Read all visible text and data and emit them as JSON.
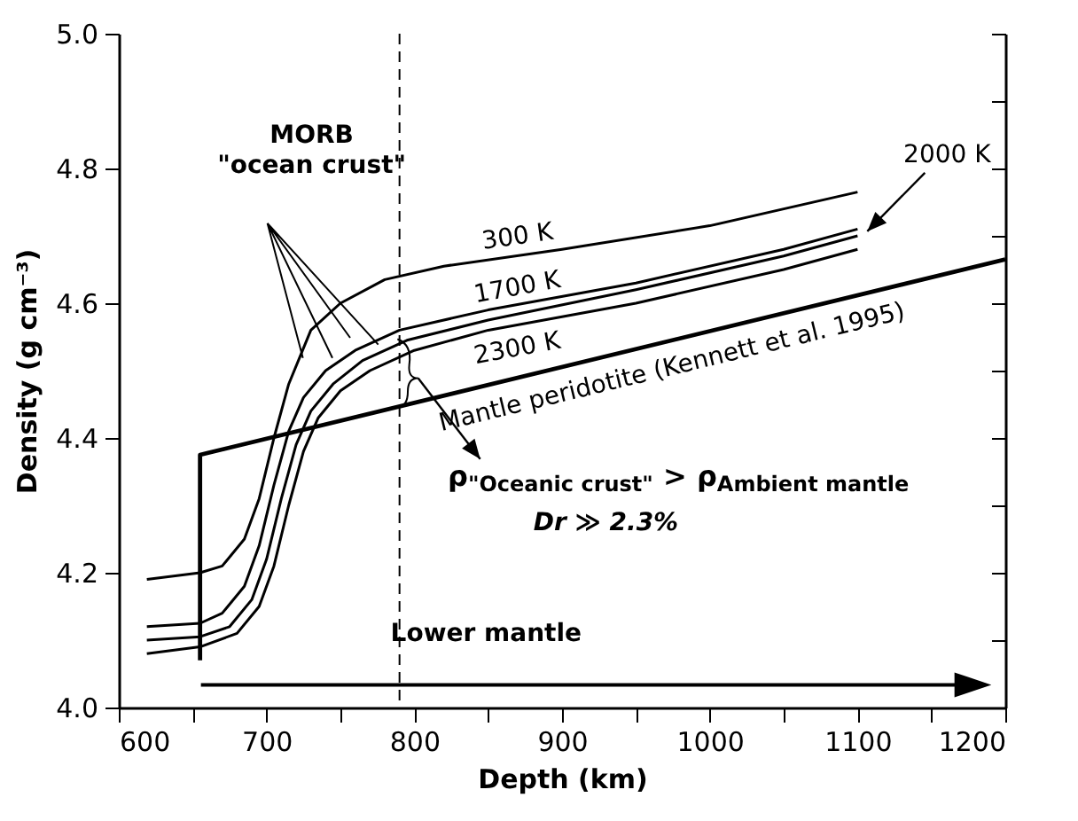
{
  "chart_data": {
    "type": "line",
    "xlabel": "Depth (km)",
    "ylabel": "Density (g cm⁻³)",
    "xlim": [
      600,
      1200
    ],
    "ylim": [
      4.0,
      5.0
    ],
    "xticks": [
      600,
      {
        "value": 650,
        "label": null
      },
      700,
      {
        "value": 750,
        "label": null
      },
      800,
      {
        "value": 850,
        "label": null
      },
      900,
      {
        "value": 950,
        "label": null
      },
      1000,
      {
        "value": 1050,
        "label": null
      },
      1100,
      {
        "value": 1150,
        "label": null
      },
      1200
    ],
    "yticks": [
      {
        "value": 4.0,
        "label": "4.0"
      },
      {
        "value": 4.1,
        "label": null
      },
      {
        "value": 4.2,
        "label": "4.2"
      },
      {
        "value": 4.3,
        "label": null
      },
      {
        "value": 4.4,
        "label": "4.4"
      },
      {
        "value": 4.5,
        "label": null
      },
      {
        "value": 4.6,
        "label": "4.6"
      },
      {
        "value": 4.7,
        "label": null
      },
      {
        "value": 4.8,
        "label": "4.8"
      },
      {
        "value": 4.9,
        "label": null
      },
      {
        "value": 5.0,
        "label": "5.0"
      }
    ],
    "grid": false,
    "marker": "none",
    "line_style": "solid",
    "series": [
      {
        "name": "300 K",
        "color": "#000000",
        "x": [
          619,
          655,
          670,
          685,
          695,
          705,
          715,
          730,
          750,
          780,
          820,
          900,
          1000,
          1100
        ],
        "values": [
          4.19,
          4.2,
          4.21,
          4.25,
          4.31,
          4.4,
          4.48,
          4.56,
          4.6,
          4.635,
          4.655,
          4.68,
          4.715,
          4.765
        ]
      },
      {
        "name": "2000 K",
        "color": "#000000",
        "x": [
          619,
          655,
          675,
          690,
          700,
          710,
          720,
          730,
          745,
          765,
          795,
          850,
          950,
          1050,
          1100
        ],
        "values": [
          4.1,
          4.105,
          4.12,
          4.16,
          4.22,
          4.31,
          4.39,
          4.44,
          4.48,
          4.515,
          4.545,
          4.575,
          4.62,
          4.67,
          4.7
        ]
      },
      {
        "name": "1700 K",
        "color": "#000000",
        "x": [
          619,
          655,
          670,
          685,
          695,
          705,
          715,
          725,
          740,
          760,
          790,
          850,
          950,
          1050,
          1100
        ],
        "values": [
          4.12,
          4.125,
          4.14,
          4.18,
          4.24,
          4.33,
          4.41,
          4.46,
          4.5,
          4.53,
          4.56,
          4.59,
          4.63,
          4.68,
          4.71
        ]
      },
      {
        "name": "2300 K",
        "color": "#000000",
        "x": [
          619,
          655,
          680,
          695,
          705,
          715,
          725,
          735,
          750,
          770,
          800,
          850,
          950,
          1050,
          1100
        ],
        "values": [
          4.08,
          4.09,
          4.11,
          4.15,
          4.21,
          4.3,
          4.38,
          4.43,
          4.47,
          4.5,
          4.53,
          4.56,
          4.6,
          4.65,
          4.68
        ]
      },
      {
        "name": "Mantle peridotite (Kennett et al. 1995)",
        "color": "#000000",
        "x": [
          655,
          655,
          1200
        ],
        "values": [
          4.07,
          4.375,
          4.665
        ]
      }
    ],
    "ref_lines": [
      {
        "axis": "x",
        "value": 790,
        "label": null,
        "color": "#000000",
        "line_style": "dashed"
      }
    ],
    "annotations": [
      "MORB",
      "\"ocean crust\"",
      "ρ$_{\"Oceanic crust\"}$ > ρ$_{Ambient mantle}$",
      "Dr ≫ 2.3%",
      "Lower mantle"
    ]
  }
}
